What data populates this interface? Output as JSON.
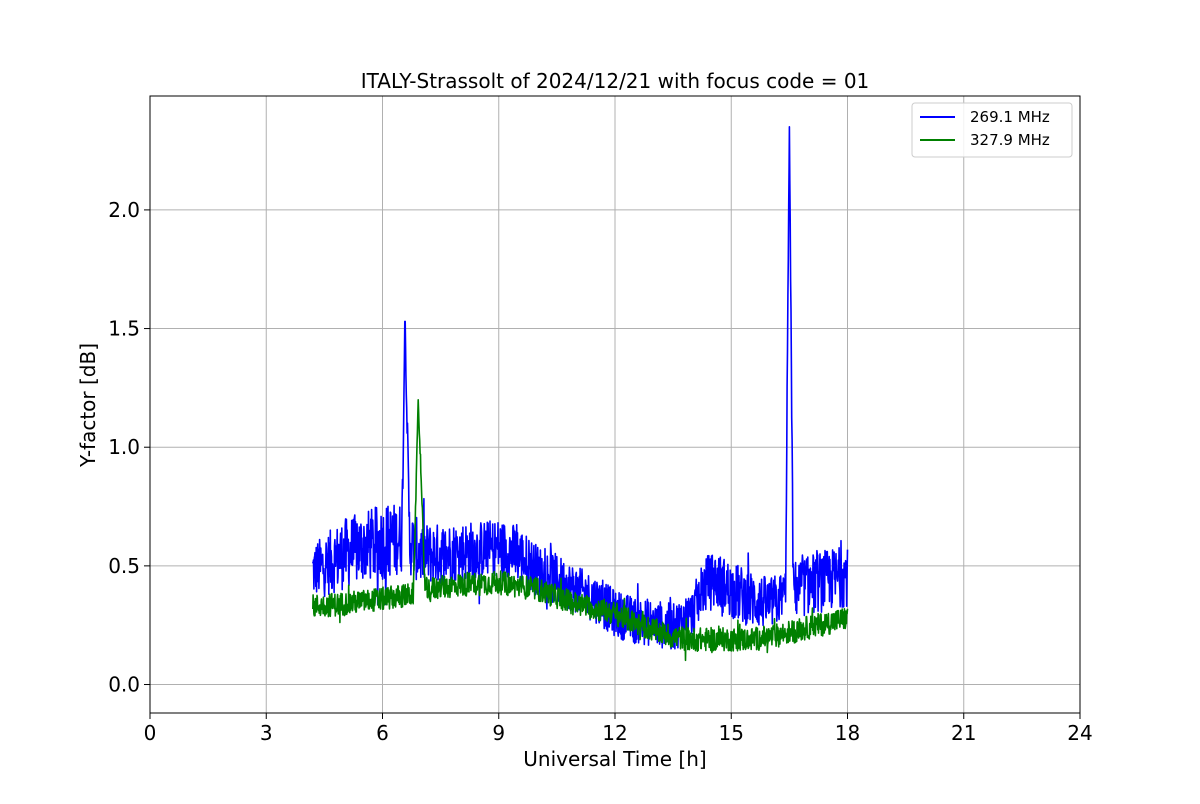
{
  "chart_data": {
    "type": "line",
    "title": "ITALY-Strassolt of 2024/12/21 with focus code = 01",
    "xlabel": "Universal Time [h]",
    "ylabel": "Y-factor [dB]",
    "xlim": [
      0,
      24
    ],
    "ylim": [
      -0.12,
      2.48
    ],
    "xticks": [
      0,
      3,
      6,
      9,
      12,
      15,
      18,
      21,
      24
    ],
    "yticks": [
      0.0,
      0.5,
      1.0,
      1.5,
      2.0
    ],
    "xtick_labels": [
      "0",
      "3",
      "6",
      "9",
      "12",
      "15",
      "18",
      "21",
      "24"
    ],
    "ytick_labels": [
      "0.0",
      "0.5",
      "1.0",
      "1.5",
      "2.0"
    ],
    "grid": true,
    "legend_position": "top-right",
    "series": [
      {
        "name": "269.1 MHz",
        "color": "#0000ff",
        "x": [
          4.2,
          4.5,
          5.0,
          5.5,
          6.0,
          6.5,
          6.58,
          6.7,
          7.0,
          7.5,
          8.0,
          8.5,
          9.0,
          9.5,
          10.0,
          10.5,
          11.0,
          11.5,
          12.0,
          12.5,
          13.0,
          13.5,
          14.0,
          14.3,
          14.6,
          15.0,
          15.5,
          16.0,
          16.4,
          16.5,
          16.6,
          17.0,
          17.5,
          18.0
        ],
        "values": [
          0.48,
          0.5,
          0.55,
          0.58,
          0.6,
          0.62,
          1.53,
          0.6,
          0.55,
          0.55,
          0.56,
          0.57,
          0.58,
          0.55,
          0.48,
          0.44,
          0.4,
          0.36,
          0.3,
          0.27,
          0.26,
          0.24,
          0.3,
          0.42,
          0.44,
          0.4,
          0.36,
          0.34,
          0.38,
          2.35,
          0.4,
          0.42,
          0.44,
          0.46
        ],
        "spread": [
          0.12,
          0.13,
          0.15,
          0.15,
          0.16,
          0.15,
          0.0,
          0.14,
          0.13,
          0.13,
          0.13,
          0.12,
          0.12,
          0.12,
          0.11,
          0.11,
          0.1,
          0.1,
          0.1,
          0.1,
          0.1,
          0.1,
          0.1,
          0.12,
          0.12,
          0.12,
          0.12,
          0.11,
          0.11,
          0.0,
          0.12,
          0.13,
          0.13,
          0.13
        ]
      },
      {
        "name": "327.9 MHz",
        "color": "#008000",
        "x": [
          4.2,
          5.0,
          6.0,
          6.8,
          6.92,
          7.1,
          8.0,
          9.0,
          10.0,
          11.0,
          12.0,
          12.5,
          13.0,
          13.5,
          14.0,
          15.0,
          15.5,
          16.0,
          16.5,
          17.0,
          17.5,
          18.0
        ],
        "values": [
          0.33,
          0.34,
          0.36,
          0.38,
          1.2,
          0.4,
          0.42,
          0.43,
          0.4,
          0.34,
          0.3,
          0.26,
          0.23,
          0.2,
          0.19,
          0.19,
          0.19,
          0.2,
          0.22,
          0.24,
          0.26,
          0.28
        ],
        "spread": [
          0.05,
          0.05,
          0.05,
          0.05,
          0.0,
          0.05,
          0.05,
          0.05,
          0.05,
          0.05,
          0.05,
          0.05,
          0.05,
          0.05,
          0.05,
          0.05,
          0.05,
          0.05,
          0.05,
          0.05,
          0.05,
          0.05
        ]
      }
    ]
  }
}
